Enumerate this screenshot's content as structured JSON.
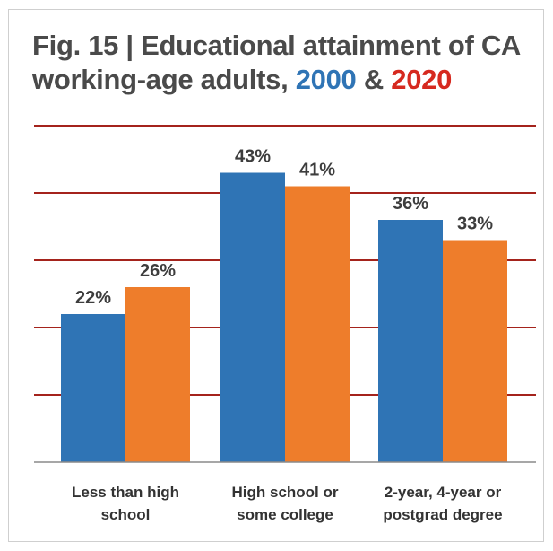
{
  "title": {
    "line1": "Fig. 15 | Educational attainment of CA",
    "line2_prefix": "working-age adults,",
    "year_a": "2000",
    "amp": "&",
    "year_b": "2020"
  },
  "colors": {
    "series_2000": "#2f74b5",
    "series_2020": "#ee7d2b",
    "gridline": "#a4231c",
    "axis": "#8a8a8a"
  },
  "chart_data": {
    "type": "bar",
    "title": "Fig. 15 | Educational attainment of CA working-age adults, 2000 & 2020",
    "categories": [
      [
        "Less than high",
        "school"
      ],
      [
        "High school or",
        "some college"
      ],
      [
        "2-year, 4-year or",
        "postgrad degree"
      ]
    ],
    "series": [
      {
        "name": "2000",
        "values": [
          22,
          43,
          36
        ],
        "labels": [
          "22%",
          "43%",
          "36%"
        ]
      },
      {
        "name": "2020",
        "values": [
          26,
          41,
          33
        ],
        "labels": [
          "26%",
          "41%",
          "33%"
        ]
      }
    ],
    "ylim": [
      0,
      50
    ],
    "gridlines": [
      10,
      20,
      30,
      40,
      50
    ],
    "grid": true,
    "legend": "in title"
  }
}
